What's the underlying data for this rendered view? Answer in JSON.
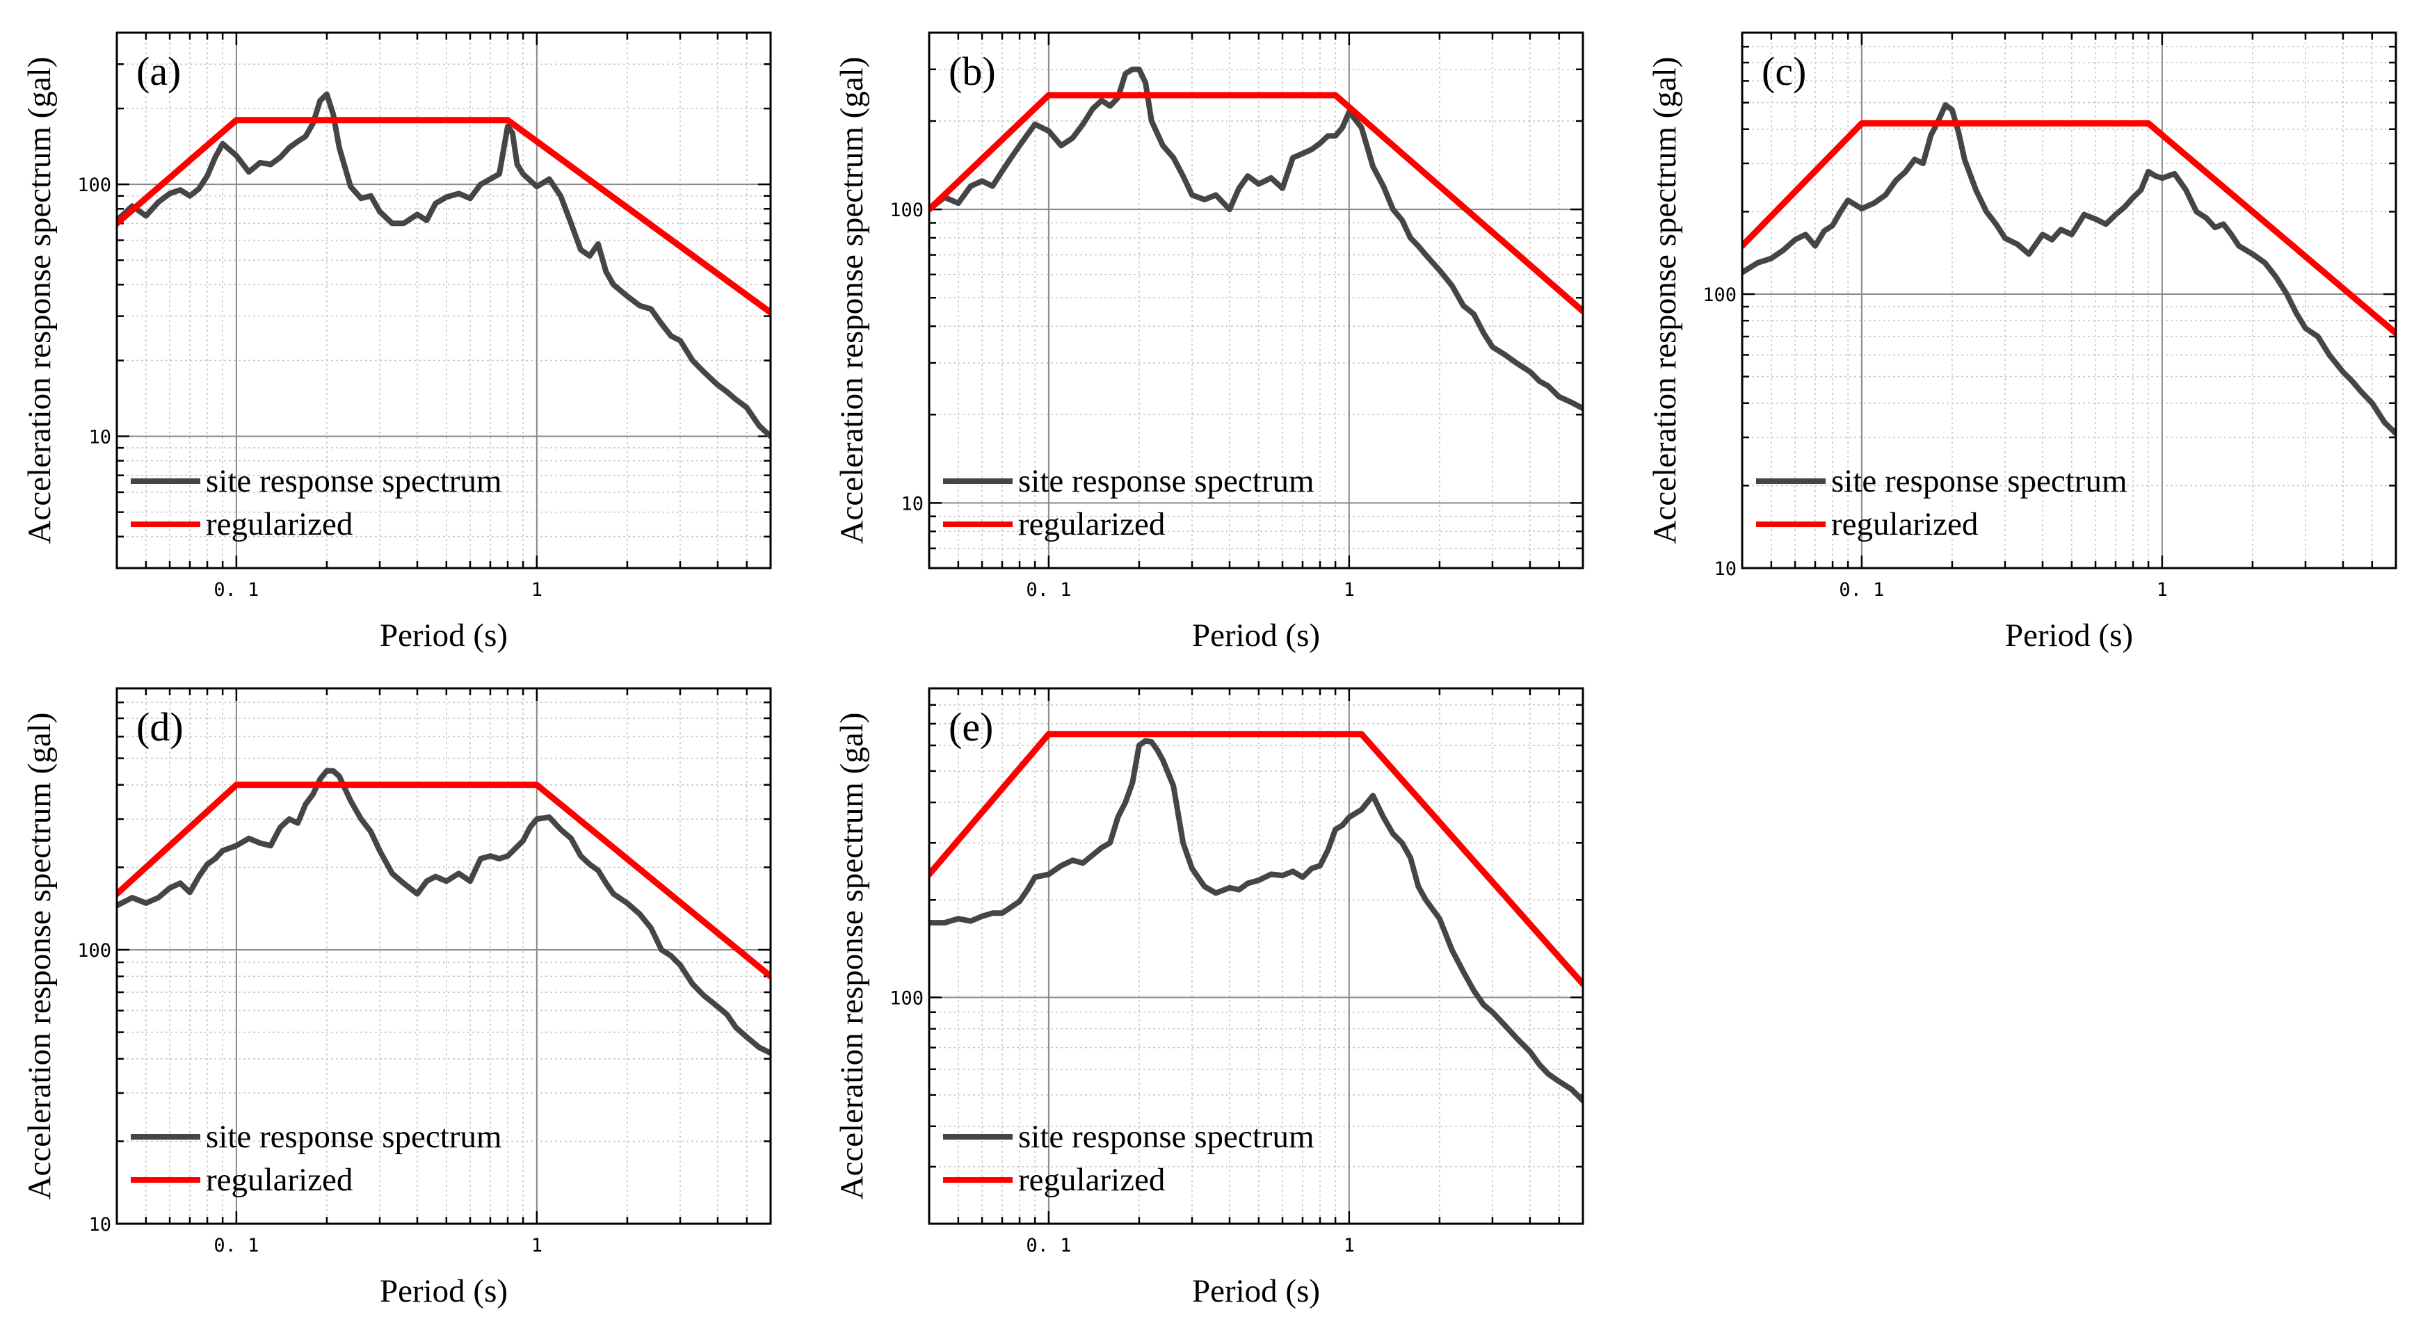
{
  "chart_data": [
    {
      "type": "line",
      "panel_label": "(a)",
      "xlabel": "Period (s)",
      "ylabel": "Acceleration response spectrum (gal)",
      "xscale": "log",
      "yscale": "log",
      "xlim": [
        0.04,
        6
      ],
      "ylim": [
        3,
        400
      ],
      "xticks": [
        {
          "value": 0.1,
          "label": "0. 1"
        },
        {
          "value": 1,
          "label": "1"
        }
      ],
      "yticks": [
        {
          "value": 10,
          "label": "10"
        },
        {
          "value": 100,
          "label": "100"
        }
      ],
      "grid": true,
      "legend": {
        "position": "bottom-left",
        "entries": [
          "site response spectrum",
          "regularized"
        ]
      },
      "series": [
        {
          "name": "site response spectrum",
          "color": "#454545",
          "x": [
            0.04,
            0.045,
            0.05,
            0.055,
            0.06,
            0.065,
            0.07,
            0.075,
            0.08,
            0.085,
            0.09,
            0.1,
            0.11,
            0.12,
            0.13,
            0.14,
            0.15,
            0.16,
            0.17,
            0.18,
            0.19,
            0.2,
            0.21,
            0.22,
            0.24,
            0.26,
            0.28,
            0.3,
            0.33,
            0.36,
            0.4,
            0.43,
            0.46,
            0.5,
            0.55,
            0.6,
            0.65,
            0.7,
            0.75,
            0.8,
            0.83,
            0.86,
            0.9,
            1.0,
            1.1,
            1.2,
            1.3,
            1.4,
            1.5,
            1.6,
            1.7,
            1.8,
            2.0,
            2.2,
            2.4,
            2.6,
            2.8,
            3.0,
            3.3,
            3.6,
            4.0,
            4.3,
            4.6,
            5.0,
            5.5,
            6.0
          ],
          "y": [
            72,
            82,
            75,
            85,
            92,
            95,
            90,
            96,
            108,
            128,
            145,
            130,
            112,
            122,
            120,
            128,
            140,
            148,
            155,
            175,
            215,
            228,
            190,
            140,
            98,
            88,
            90,
            78,
            70,
            70,
            76,
            72,
            84,
            89,
            92,
            88,
            100,
            105,
            110,
            170,
            160,
            120,
            110,
            98,
            105,
            90,
            70,
            55,
            52,
            58,
            45,
            40,
            36,
            33,
            32,
            28,
            25,
            24,
            20,
            18,
            16,
            15,
            14,
            13,
            11,
            10
          ]
        },
        {
          "name": "regularized",
          "color": "#ff0000",
          "x": [
            0.04,
            0.1,
            0.8,
            6.0
          ],
          "y": [
            70,
            180,
            180,
            31
          ]
        }
      ]
    },
    {
      "type": "line",
      "panel_label": "(b)",
      "xlabel": "Period (s)",
      "ylabel": "Acceleration response spectrum (gal)",
      "xscale": "log",
      "yscale": "log",
      "xlim": [
        0.04,
        6
      ],
      "ylim": [
        6,
        400
      ],
      "xticks": [
        {
          "value": 0.1,
          "label": "0. 1"
        },
        {
          "value": 1,
          "label": "1"
        }
      ],
      "yticks": [
        {
          "value": 10,
          "label": "10"
        },
        {
          "value": 100,
          "label": "100"
        }
      ],
      "grid": true,
      "legend": {
        "position": "bottom-left",
        "entries": [
          "site response spectrum",
          "regularized"
        ]
      },
      "series": [
        {
          "name": "site response spectrum",
          "color": "#454545",
          "x": [
            0.04,
            0.045,
            0.05,
            0.055,
            0.06,
            0.065,
            0.07,
            0.075,
            0.08,
            0.085,
            0.09,
            0.1,
            0.11,
            0.12,
            0.13,
            0.14,
            0.15,
            0.16,
            0.17,
            0.18,
            0.19,
            0.2,
            0.21,
            0.22,
            0.24,
            0.26,
            0.28,
            0.3,
            0.33,
            0.36,
            0.4,
            0.43,
            0.46,
            0.5,
            0.55,
            0.6,
            0.65,
            0.7,
            0.75,
            0.8,
            0.85,
            0.9,
            0.95,
            1.0,
            1.1,
            1.2,
            1.3,
            1.4,
            1.5,
            1.6,
            1.7,
            1.8,
            2.0,
            2.2,
            2.4,
            2.6,
            2.8,
            3.0,
            3.3,
            3.6,
            4.0,
            4.3,
            4.6,
            5.0,
            5.5,
            6.0
          ],
          "y": [
            100,
            110,
            105,
            120,
            125,
            120,
            135,
            150,
            165,
            180,
            195,
            185,
            165,
            175,
            195,
            220,
            235,
            225,
            240,
            290,
            300,
            300,
            270,
            200,
            165,
            150,
            130,
            112,
            108,
            112,
            100,
            118,
            130,
            122,
            128,
            118,
            150,
            155,
            160,
            168,
            178,
            178,
            190,
            215,
            190,
            140,
            120,
            100,
            92,
            80,
            75,
            70,
            62,
            55,
            47,
            44,
            38,
            34,
            32,
            30,
            28,
            26,
            25,
            23,
            22,
            21
          ]
        },
        {
          "name": "regularized",
          "color": "#ff0000",
          "x": [
            0.04,
            0.1,
            0.9,
            6.0
          ],
          "y": [
            100,
            245,
            245,
            45
          ]
        }
      ]
    },
    {
      "type": "line",
      "panel_label": "(c)",
      "xlabel": "Period (s)",
      "ylabel": "Acceleration response spectrum (gal)",
      "xscale": "log",
      "yscale": "log",
      "xlim": [
        0.04,
        6
      ],
      "ylim": [
        10,
        900
      ],
      "xticks": [
        {
          "value": 0.1,
          "label": "0. 1"
        },
        {
          "value": 1,
          "label": "1"
        }
      ],
      "yticks": [
        {
          "value": 10,
          "label": "10"
        },
        {
          "value": 100,
          "label": "100"
        }
      ],
      "grid": true,
      "legend": {
        "position": "bottom-left",
        "entries": [
          "site response spectrum",
          "regularized"
        ]
      },
      "series": [
        {
          "name": "site response spectrum",
          "color": "#454545",
          "x": [
            0.04,
            0.045,
            0.05,
            0.055,
            0.06,
            0.065,
            0.07,
            0.075,
            0.08,
            0.085,
            0.09,
            0.1,
            0.11,
            0.12,
            0.13,
            0.14,
            0.15,
            0.16,
            0.17,
            0.18,
            0.19,
            0.2,
            0.21,
            0.22,
            0.24,
            0.26,
            0.28,
            0.3,
            0.33,
            0.36,
            0.4,
            0.43,
            0.46,
            0.5,
            0.55,
            0.6,
            0.65,
            0.7,
            0.75,
            0.8,
            0.85,
            0.9,
            0.95,
            1.0,
            1.1,
            1.2,
            1.3,
            1.4,
            1.5,
            1.6,
            1.7,
            1.8,
            2.0,
            2.2,
            2.4,
            2.6,
            2.8,
            3.0,
            3.3,
            3.6,
            4.0,
            4.3,
            4.6,
            5.0,
            5.5,
            6.0
          ],
          "y": [
            120,
            130,
            135,
            145,
            158,
            165,
            150,
            170,
            178,
            200,
            220,
            205,
            215,
            230,
            260,
            280,
            310,
            300,
            380,
            430,
            490,
            470,
            390,
            310,
            240,
            200,
            180,
            160,
            152,
            140,
            165,
            158,
            172,
            165,
            195,
            188,
            180,
            195,
            208,
            225,
            240,
            280,
            270,
            265,
            275,
            240,
            200,
            190,
            175,
            180,
            165,
            150,
            140,
            130,
            115,
            100,
            85,
            75,
            70,
            60,
            52,
            48,
            44,
            40,
            34,
            31
          ]
        },
        {
          "name": "regularized",
          "color": "#ff0000",
          "x": [
            0.04,
            0.1,
            0.9,
            6.0
          ],
          "y": [
            150,
            420,
            420,
            72
          ]
        }
      ]
    },
    {
      "type": "line",
      "panel_label": "(d)",
      "xlabel": "Period (s)",
      "ylabel": "Acceleration response spectrum (gal)",
      "xscale": "log",
      "yscale": "log",
      "xlim": [
        0.04,
        6
      ],
      "ylim": [
        10,
        900
      ],
      "xticks": [
        {
          "value": 0.1,
          "label": "0. 1"
        },
        {
          "value": 1,
          "label": "1"
        }
      ],
      "yticks": [
        {
          "value": 10,
          "label": "10"
        },
        {
          "value": 100,
          "label": "100"
        }
      ],
      "grid": true,
      "legend": {
        "position": "bottom-left",
        "entries": [
          "site response spectrum",
          "regularized"
        ]
      },
      "series": [
        {
          "name": "site response spectrum",
          "color": "#454545",
          "x": [
            0.04,
            0.045,
            0.05,
            0.055,
            0.06,
            0.065,
            0.07,
            0.075,
            0.08,
            0.085,
            0.09,
            0.1,
            0.11,
            0.12,
            0.13,
            0.14,
            0.15,
            0.16,
            0.17,
            0.18,
            0.19,
            0.2,
            0.21,
            0.22,
            0.24,
            0.26,
            0.28,
            0.3,
            0.33,
            0.36,
            0.4,
            0.43,
            0.46,
            0.5,
            0.55,
            0.6,
            0.65,
            0.7,
            0.75,
            0.8,
            0.85,
            0.9,
            0.95,
            1.0,
            1.1,
            1.2,
            1.3,
            1.4,
            1.5,
            1.6,
            1.7,
            1.8,
            2.0,
            2.2,
            2.4,
            2.6,
            2.8,
            3.0,
            3.3,
            3.6,
            4.0,
            4.3,
            4.6,
            5.0,
            5.5,
            6.0
          ],
          "y": [
            145,
            155,
            148,
            155,
            168,
            175,
            162,
            185,
            205,
            215,
            230,
            240,
            255,
            245,
            240,
            280,
            300,
            290,
            340,
            370,
            420,
            450,
            450,
            430,
            350,
            300,
            270,
            230,
            190,
            175,
            160,
            178,
            185,
            178,
            190,
            178,
            215,
            220,
            215,
            220,
            235,
            250,
            280,
            300,
            305,
            275,
            255,
            220,
            205,
            195,
            175,
            160,
            148,
            135,
            120,
            100,
            95,
            88,
            75,
            68,
            62,
            58,
            52,
            48,
            44,
            42
          ]
        },
        {
          "name": "regularized",
          "color": "#ff0000",
          "x": [
            0.04,
            0.1,
            1.0,
            6.0
          ],
          "y": [
            160,
            400,
            400,
            80
          ]
        }
      ]
    },
    {
      "type": "line",
      "panel_label": "(e)",
      "xlabel": "Period (s)",
      "ylabel": "Acceleration response spectrum (gal)",
      "xscale": "log",
      "yscale": "log",
      "xlim": [
        0.04,
        6
      ],
      "ylim": [
        20,
        900
      ],
      "xticks": [
        {
          "value": 0.1,
          "label": "0. 1"
        },
        {
          "value": 1,
          "label": "1"
        }
      ],
      "yticks": [
        {
          "value": 100,
          "label": "100"
        }
      ],
      "grid": true,
      "legend": {
        "position": "bottom-left",
        "entries": [
          "site response spectrum",
          "regularized"
        ]
      },
      "series": [
        {
          "name": "site response spectrum",
          "color": "#454545",
          "x": [
            0.04,
            0.045,
            0.05,
            0.055,
            0.06,
            0.065,
            0.07,
            0.075,
            0.08,
            0.085,
            0.09,
            0.1,
            0.11,
            0.12,
            0.13,
            0.14,
            0.15,
            0.16,
            0.17,
            0.18,
            0.19,
            0.2,
            0.21,
            0.22,
            0.23,
            0.24,
            0.26,
            0.28,
            0.3,
            0.33,
            0.36,
            0.4,
            0.43,
            0.46,
            0.5,
            0.55,
            0.6,
            0.65,
            0.7,
            0.75,
            0.8,
            0.85,
            0.9,
            0.95,
            1.0,
            1.1,
            1.2,
            1.3,
            1.4,
            1.5,
            1.6,
            1.7,
            1.8,
            2.0,
            2.2,
            2.4,
            2.6,
            2.8,
            3.0,
            3.3,
            3.6,
            4.0,
            4.3,
            4.6,
            5.0,
            5.5,
            6.0
          ],
          "y": [
            170,
            170,
            175,
            172,
            178,
            182,
            182,
            190,
            198,
            215,
            235,
            240,
            255,
            265,
            260,
            275,
            290,
            300,
            360,
            400,
            460,
            600,
            620,
            615,
            580,
            540,
            450,
            300,
            250,
            220,
            210,
            218,
            215,
            225,
            230,
            240,
            238,
            245,
            235,
            250,
            255,
            285,
            330,
            340,
            360,
            380,
            420,
            360,
            320,
            300,
            270,
            220,
            200,
            175,
            140,
            120,
            105,
            95,
            90,
            82,
            75,
            68,
            62,
            58,
            55,
            52,
            48
          ]
        },
        {
          "name": "regularized",
          "color": "#ff0000",
          "x": [
            0.04,
            0.1,
            1.1,
            6.0
          ],
          "y": [
            240,
            650,
            650,
            110
          ]
        }
      ]
    }
  ]
}
